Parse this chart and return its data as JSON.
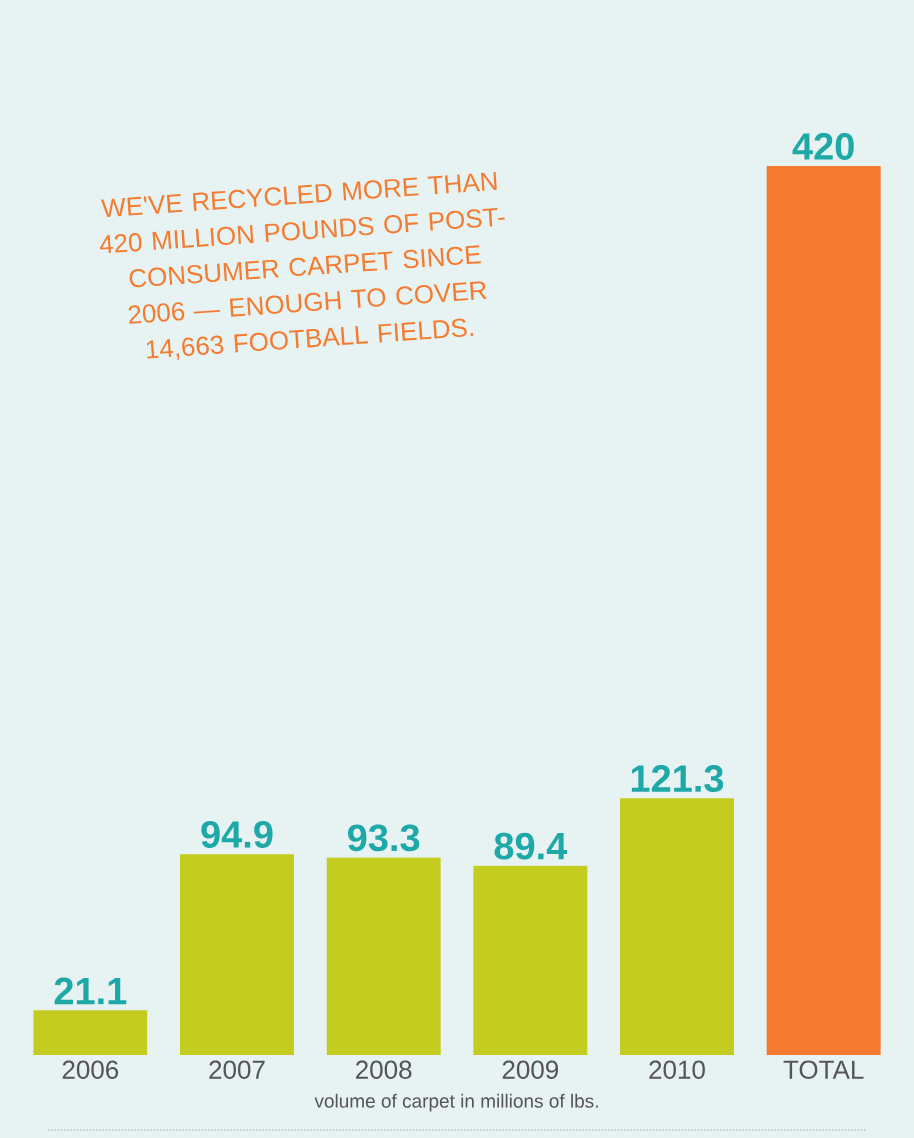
{
  "chart_data": {
    "type": "bar",
    "categories": [
      "2006",
      "2007",
      "2008",
      "2009",
      "2010",
      "TOTAL"
    ],
    "values": [
      21.1,
      94.9,
      93.3,
      89.4,
      121.3,
      420
    ],
    "colors": [
      "#c3cc1f",
      "#c3cc1f",
      "#c3cc1f",
      "#c3cc1f",
      "#c3cc1f",
      "#f47b30"
    ],
    "data_labels": true,
    "xlabel": "volume of carpet in millions of lbs.",
    "annotations": [
      "WE'VE RECYCLED MORE THAN 420 MILLION POUNDS OF POST-CONSUMER CARPET SINCE 2006 — ENOUGH TO COVER 14,663 FOOTBALL FIELDS."
    ]
  }
}
